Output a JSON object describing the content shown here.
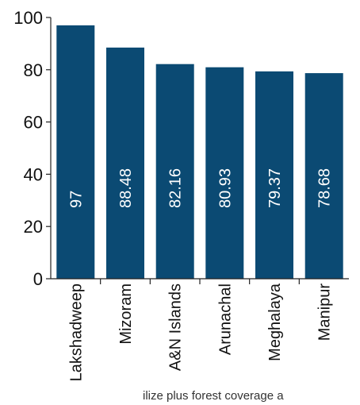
{
  "chart_data": {
    "type": "bar",
    "categories": [
      "Lakshadweep",
      "Mizoram",
      "A&N Islands",
      "Arunachal",
      "Meghalaya",
      "Manipur"
    ],
    "values": [
      97,
      88.48,
      82.16,
      80.93,
      79.37,
      78.68
    ],
    "value_labels": [
      "97",
      "88.48",
      "82.16",
      "80.93",
      "79.37",
      "78.68"
    ],
    "y_ticks": [
      0,
      20,
      40,
      60,
      80,
      100
    ],
    "ylim": [
      0,
      100
    ],
    "title": "",
    "xlabel": "",
    "ylabel": "",
    "grid": false,
    "bar_color": "#0b4a73"
  },
  "caption": "ilize plus forest coverage a"
}
